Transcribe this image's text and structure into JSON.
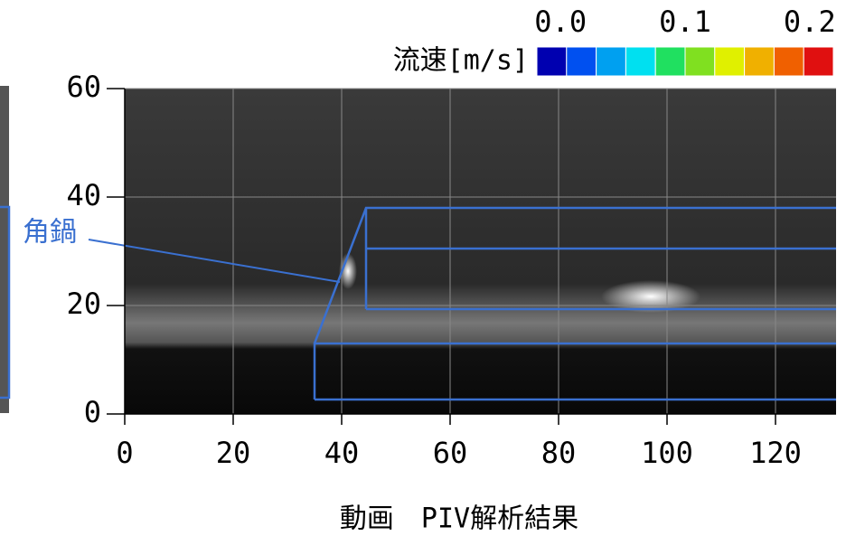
{
  "chart_data": {
    "type": "image",
    "caption": "動画　PIV解析結果",
    "annotation": "角鍋",
    "colorbar_label": "流速[m/s]",
    "colormap": [
      "#0000b0",
      "#0050f0",
      "#00a0f0",
      "#00e0f0",
      "#20e060",
      "#80e020",
      "#e0f000",
      "#f0b000",
      "#f06000",
      "#e01010"
    ],
    "clim": [
      -0.019,
      0.219
    ],
    "cticks": [
      {
        "value": 0,
        "label": "0.0"
      },
      {
        "value": 0.1,
        "label": "0.1"
      },
      {
        "value": 0.2,
        "label": "0.2"
      }
    ],
    "xlim": [
      0,
      130
    ],
    "ylim": [
      0,
      60
    ],
    "xticks": [
      0,
      20,
      40,
      60,
      80,
      100,
      120
    ],
    "yticks": [
      0,
      20,
      40,
      60
    ],
    "grid": true
  }
}
